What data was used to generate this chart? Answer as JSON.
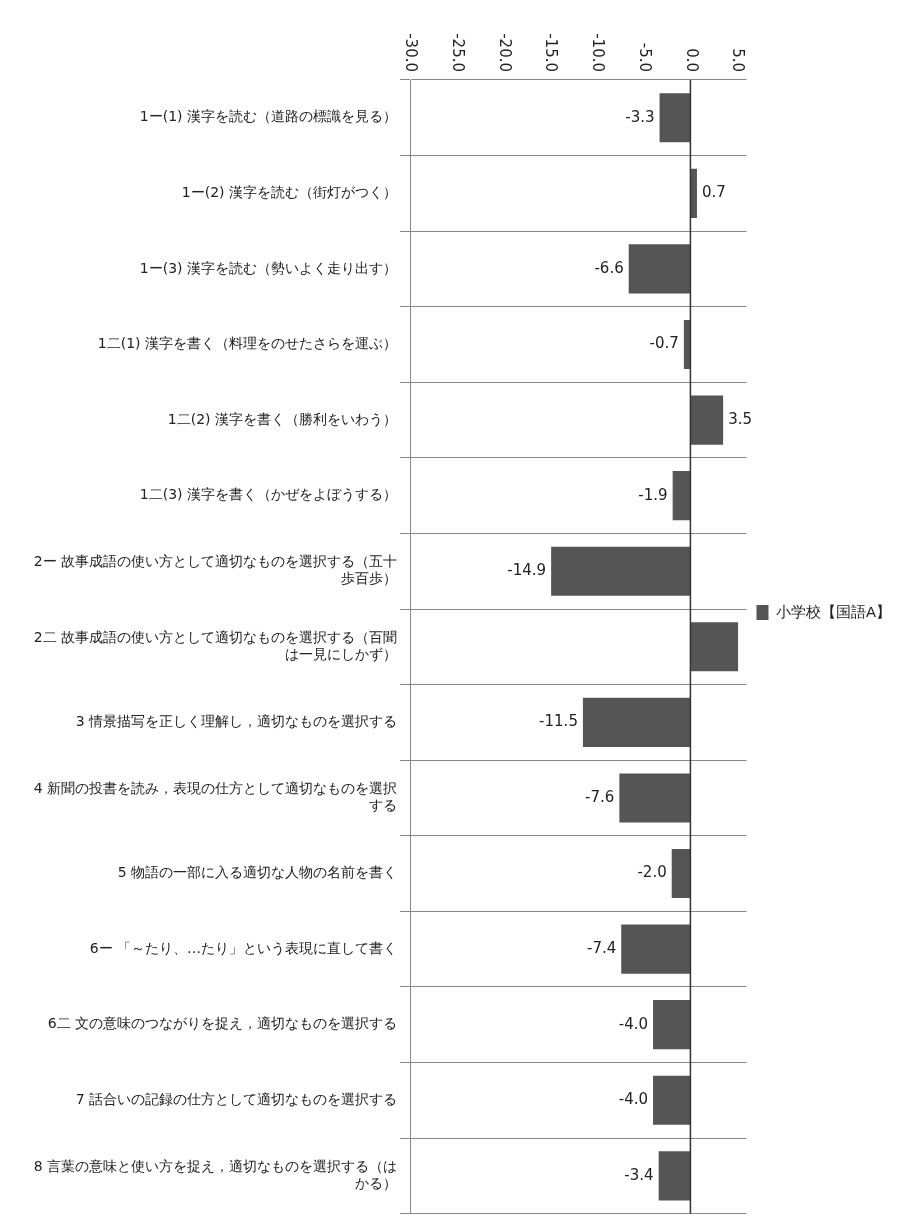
{
  "chart_data": {
    "type": "bar",
    "orientation": "horizontal",
    "categories": [
      "1ー(1) 漢字を読む（道路の標識を見る）",
      "1ー(2) 漢字を読む（街灯がつく）",
      "1ー(3) 漢字を読む（勢いよく走り出す）",
      "1二(1) 漢字を書く（料理をのせたさらを運ぶ）",
      "1二(2) 漢字を書く（勝利をいわう）",
      "1二(3) 漢字を書く（かぜをよぼうする）",
      "2ー 故事成語の使い方として適切なものを選択する（五十歩百歩）",
      "2二 故事成語の使い方として適切なものを選択する（百聞は一見にしかず）",
      "3 情景描写を正しく理解し，適切なものを選択する",
      "4 新聞の投書を読み，表現の仕方として適切なものを選択する",
      "5 物語の一部に入る適切な人物の名前を書く",
      "6ー 「～たり、…たり」という表現に直して書く",
      "6二 文の意味のつながりを捉え，適切なものを選択する",
      "7 話合いの記録の仕方として適切なものを選択する",
      "8 言葉の意味と使い方を捉え，適切なものを選択する（はかる）"
    ],
    "series": [
      {
        "name": "小学校【国語A】",
        "color": "#555555",
        "values": [
          -3.3,
          0.7,
          -6.6,
          -0.7,
          3.5,
          -1.9,
          -14.9,
          5.1,
          -11.5,
          -7.6,
          -2.0,
          -7.4,
          -4.0,
          -4.0,
          -3.4
        ],
        "value_labels": [
          "-3.3",
          "0.7",
          "-6.6",
          "-0.7",
          "3.5",
          "-1.9",
          "-14.9",
          null,
          "-11.5",
          "-7.6",
          "-2.0",
          "-7.4",
          "-4.0",
          "-4.0",
          "-3.4"
        ]
      }
    ],
    "xlim": [
      -30,
      6
    ],
    "xticks": [
      {
        "value": -30,
        "label": "-30.0"
      },
      {
        "value": -25,
        "label": "-25.0"
      },
      {
        "value": -20,
        "label": "-20.0"
      },
      {
        "value": -15,
        "label": "-15.0"
      },
      {
        "value": -10,
        "label": "-10.0"
      },
      {
        "value": -5,
        "label": "-5.0"
      },
      {
        "value": 0,
        "label": "0.0"
      },
      {
        "value": 5,
        "label": "5.0"
      }
    ],
    "ref_lines": [
      {
        "axis": "x",
        "value": 0,
        "color": "#333333"
      }
    ],
    "grid": "y",
    "legend": "right"
  }
}
